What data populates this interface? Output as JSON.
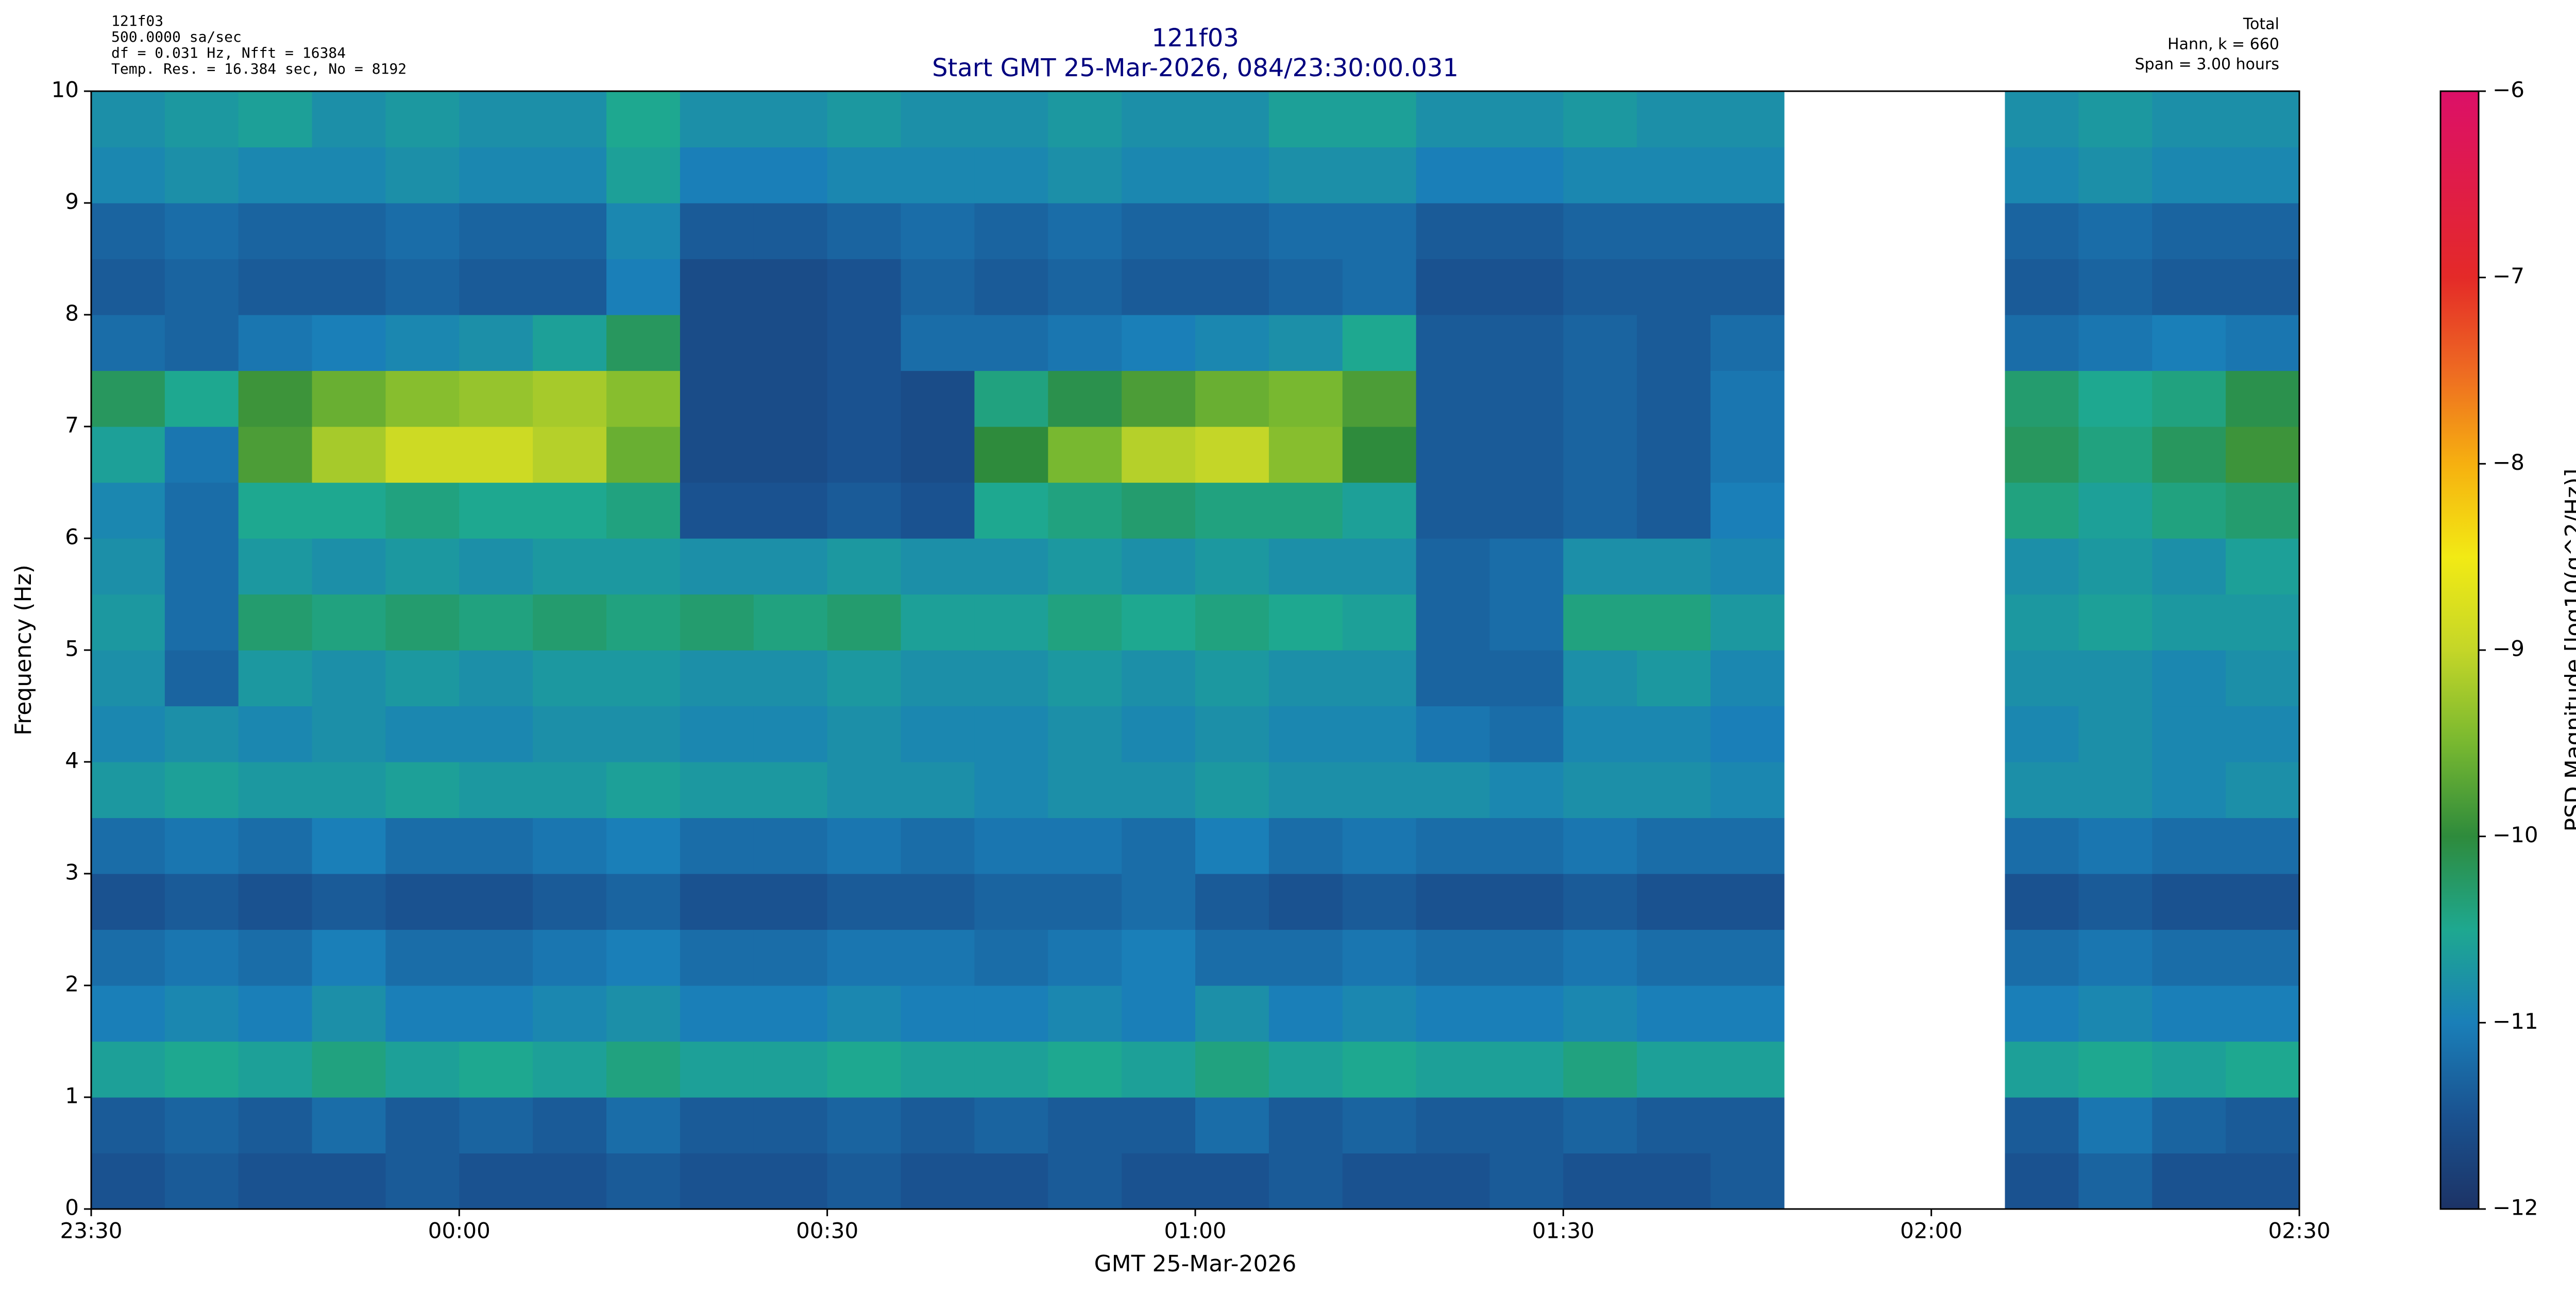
{
  "chart_data": {
    "type": "heatmap",
    "title": "121f03",
    "subtitle": "Start GMT 25-Mar-2026, 084/23:30:00.031",
    "info_left": [
      "121f03",
      "500.0000 sa/sec",
      "df = 0.031 Hz,  Nfft = 16384",
      "Temp. Res. = 16.384 sec, No = 8192"
    ],
    "info_right": [
      "Total",
      "Hann, k = 660",
      "Span = 3.00 hours"
    ],
    "xlabel": "GMT 25-Mar-2026",
    "ylabel": "Frequency (Hz)",
    "colorbar_label": "PSD Magnitude [log10(g^2/Hz)]",
    "xlim": [
      0,
      180
    ],
    "xticks": [
      {
        "value": 0,
        "label": "23:30"
      },
      {
        "value": 30,
        "label": "00:00"
      },
      {
        "value": 60,
        "label": "00:30"
      },
      {
        "value": 90,
        "label": "01:00"
      },
      {
        "value": 120,
        "label": "01:30"
      },
      {
        "value": 150,
        "label": "02:00"
      },
      {
        "value": 180,
        "label": "02:30"
      }
    ],
    "ylim": [
      0,
      10
    ],
    "yticks": [
      0,
      1,
      2,
      3,
      4,
      5,
      6,
      7,
      8,
      9,
      10
    ],
    "clim": [
      -12,
      -6
    ],
    "cticks": [
      {
        "value": -12,
        "label": "−12"
      },
      {
        "value": -11,
        "label": "−11"
      },
      {
        "value": -10,
        "label": "−10"
      },
      {
        "value": -9,
        "label": "−9"
      },
      {
        "value": -8,
        "label": "−8"
      },
      {
        "value": -7,
        "label": "−7"
      },
      {
        "value": -6,
        "label": "−6"
      }
    ],
    "colormap": [
      "#1c3366",
      "#1a5290",
      "#1a7fb8",
      "#1ea890",
      "#2e8b3c",
      "#78b830",
      "#c4d628",
      "#f2ea14",
      "#f6b010",
      "#ee6a22",
      "#e42a28",
      "#e01c48",
      "#dc1068"
    ],
    "xbins": [
      0,
      6,
      12,
      18,
      24,
      30,
      36,
      42,
      48,
      54,
      60,
      66,
      72,
      78,
      84,
      90,
      96,
      102,
      108,
      114,
      120,
      126,
      132,
      138,
      144,
      150,
      156,
      162,
      168,
      174,
      180
    ],
    "ybins": [
      0,
      0.5,
      1,
      1.5,
      2,
      2.5,
      3,
      3.5,
      4,
      4.5,
      5,
      5.5,
      6,
      6.5,
      7,
      7.5,
      8,
      8.5,
      9,
      9.5,
      10
    ],
    "z": [
      [
        -11.5,
        -11.4,
        -11.5,
        -11.5,
        -11.4,
        -11.5,
        -11.5,
        -11.4,
        -11.5,
        -11.5,
        -11.4,
        -11.5,
        -11.5,
        -11.4,
        -11.5,
        -11.5,
        -11.4,
        -11.5,
        -11.5,
        -11.4,
        -11.5,
        -11.5,
        -11.4,
        null,
        null,
        null,
        -11.5,
        -11.3,
        -11.5,
        -11.5
      ],
      [
        -11.4,
        -11.3,
        -11.4,
        -11.2,
        -11.4,
        -11.3,
        -11.4,
        -11.2,
        -11.4,
        -11.4,
        -11.3,
        -11.4,
        -11.3,
        -11.4,
        -11.4,
        -11.2,
        -11.4,
        -11.3,
        -11.4,
        -11.4,
        -11.3,
        -11.4,
        -11.4,
        null,
        null,
        null,
        -11.4,
        -11.1,
        -11.3,
        -11.4
      ],
      [
        -10.6,
        -10.5,
        -10.6,
        -10.4,
        -10.6,
        -10.5,
        -10.6,
        -10.4,
        -10.6,
        -10.6,
        -10.5,
        -10.6,
        -10.6,
        -10.5,
        -10.6,
        -10.4,
        -10.6,
        -10.5,
        -10.6,
        -10.6,
        -10.4,
        -10.6,
        -10.6,
        null,
        null,
        null,
        -10.6,
        -10.5,
        -10.6,
        -10.5
      ],
      [
        -11.0,
        -10.9,
        -11.0,
        -10.8,
        -11.0,
        -11.0,
        -10.9,
        -10.8,
        -11.0,
        -11.0,
        -10.9,
        -11.0,
        -11.0,
        -10.9,
        -11.0,
        -10.8,
        -11.0,
        -10.9,
        -11.0,
        -11.0,
        -10.9,
        -11.0,
        -11.0,
        null,
        null,
        null,
        -11.0,
        -10.9,
        -11.0,
        -11.0
      ],
      [
        -11.2,
        -11.1,
        -11.2,
        -11.0,
        -11.2,
        -11.2,
        -11.1,
        -11.0,
        -11.2,
        -11.2,
        -11.1,
        -11.1,
        -11.2,
        -11.1,
        -11.0,
        -11.2,
        -11.2,
        -11.1,
        -11.2,
        -11.2,
        -11.1,
        -11.2,
        -11.2,
        null,
        null,
        null,
        -11.2,
        -11.1,
        -11.2,
        -11.2
      ],
      [
        -11.5,
        -11.4,
        -11.5,
        -11.4,
        -11.5,
        -11.5,
        -11.4,
        -11.3,
        -11.5,
        -11.5,
        -11.4,
        -11.4,
        -11.3,
        -11.3,
        -11.2,
        -11.4,
        -11.5,
        -11.4,
        -11.5,
        -11.5,
        -11.4,
        -11.5,
        -11.5,
        null,
        null,
        null,
        -11.5,
        -11.4,
        -11.5,
        -11.5
      ],
      [
        -11.2,
        -11.1,
        -11.2,
        -11.0,
        -11.2,
        -11.2,
        -11.1,
        -11.0,
        -11.2,
        -11.2,
        -11.1,
        -11.2,
        -11.1,
        -11.1,
        -11.2,
        -11.0,
        -11.2,
        -11.1,
        -11.2,
        -11.2,
        -11.1,
        -11.2,
        -11.2,
        null,
        null,
        null,
        -11.2,
        -11.1,
        -11.2,
        -11.2
      ],
      [
        -10.7,
        -10.6,
        -10.7,
        -10.7,
        -10.6,
        -10.7,
        -10.7,
        -10.6,
        -10.7,
        -10.7,
        -10.8,
        -10.8,
        -10.9,
        -10.8,
        -10.8,
        -10.7,
        -10.8,
        -10.8,
        -10.8,
        -10.9,
        -10.8,
        -10.8,
        -10.9,
        null,
        null,
        null,
        -10.8,
        -10.8,
        -10.9,
        -10.8
      ],
      [
        -10.9,
        -10.8,
        -10.9,
        -10.8,
        -10.9,
        -10.9,
        -10.8,
        -10.8,
        -10.9,
        -10.9,
        -10.8,
        -10.9,
        -10.9,
        -10.8,
        -10.9,
        -10.8,
        -10.9,
        -10.9,
        -11.1,
        -11.2,
        -10.9,
        -10.9,
        -11.0,
        null,
        null,
        null,
        -10.9,
        -10.8,
        -10.9,
        -10.9
      ],
      [
        -10.8,
        -11.3,
        -10.7,
        -10.8,
        -10.7,
        -10.8,
        -10.7,
        -10.7,
        -10.8,
        -10.8,
        -10.7,
        -10.8,
        -10.8,
        -10.7,
        -10.8,
        -10.7,
        -10.8,
        -10.8,
        -11.3,
        -11.3,
        -10.8,
        -10.7,
        -10.9,
        null,
        null,
        null,
        -10.8,
        -10.8,
        -10.9,
        -10.8
      ],
      [
        -10.7,
        -11.2,
        -10.3,
        -10.4,
        -10.3,
        -10.4,
        -10.3,
        -10.4,
        -10.3,
        -10.4,
        -10.3,
        -10.6,
        -10.6,
        -10.4,
        -10.5,
        -10.4,
        -10.5,
        -10.6,
        -11.3,
        -11.2,
        -10.4,
        -10.4,
        -10.7,
        null,
        null,
        null,
        -10.7,
        -10.6,
        -10.7,
        -10.7
      ],
      [
        -10.8,
        -11.2,
        -10.7,
        -10.8,
        -10.7,
        -10.8,
        -10.7,
        -10.7,
        -10.8,
        -10.8,
        -10.7,
        -10.8,
        -10.8,
        -10.7,
        -10.8,
        -10.7,
        -10.8,
        -10.8,
        -11.3,
        -11.2,
        -10.8,
        -10.8,
        -10.9,
        null,
        null,
        null,
        -10.8,
        -10.7,
        -10.8,
        -10.6
      ],
      [
        -10.9,
        -11.2,
        -10.5,
        -10.5,
        -10.4,
        -10.5,
        -10.5,
        -10.4,
        -11.5,
        -11.5,
        -11.4,
        -11.5,
        -10.5,
        -10.4,
        -10.3,
        -10.4,
        -10.4,
        -10.6,
        -11.4,
        -11.4,
        -11.3,
        -11.4,
        -11.0,
        null,
        null,
        null,
        -10.4,
        -10.6,
        -10.4,
        -10.3
      ],
      [
        -10.6,
        -11.1,
        -9.8,
        -9.2,
        -8.9,
        -8.9,
        -9.1,
        -9.6,
        -11.6,
        -11.6,
        -11.5,
        -11.6,
        -10.0,
        -9.5,
        -9.1,
        -9.0,
        -9.4,
        -10.0,
        -11.4,
        -11.4,
        -11.3,
        -11.4,
        -11.1,
        null,
        null,
        null,
        -10.2,
        -10.4,
        -10.2,
        -9.9
      ],
      [
        -10.2,
        -10.5,
        -9.9,
        -9.6,
        -9.4,
        -9.3,
        -9.2,
        -9.4,
        -11.6,
        -11.6,
        -11.5,
        -11.6,
        -10.4,
        -10.1,
        -9.8,
        -9.6,
        -9.5,
        -9.8,
        -11.4,
        -11.4,
        -11.3,
        -11.4,
        -11.1,
        null,
        null,
        null,
        -10.3,
        -10.5,
        -10.4,
        -10.1
      ],
      [
        -11.2,
        -11.3,
        -11.1,
        -11.0,
        -10.9,
        -10.8,
        -10.6,
        -10.2,
        -11.6,
        -11.6,
        -11.5,
        -11.2,
        -11.2,
        -11.1,
        -11.0,
        -10.9,
        -10.8,
        -10.5,
        -11.4,
        -11.4,
        -11.3,
        -11.4,
        -11.2,
        null,
        null,
        null,
        -11.2,
        -11.1,
        -11.0,
        -11.1
      ],
      [
        -11.4,
        -11.3,
        -11.4,
        -11.4,
        -11.3,
        -11.4,
        -11.4,
        -11.0,
        -11.6,
        -11.6,
        -11.5,
        -11.3,
        -11.4,
        -11.3,
        -11.4,
        -11.4,
        -11.3,
        -11.2,
        -11.5,
        -11.5,
        -11.4,
        -11.4,
        -11.4,
        null,
        null,
        null,
        -11.4,
        -11.3,
        -11.4,
        -11.4
      ],
      [
        -11.3,
        -11.2,
        -11.3,
        -11.3,
        -11.2,
        -11.3,
        -11.3,
        -10.9,
        -11.4,
        -11.4,
        -11.3,
        -11.2,
        -11.3,
        -11.2,
        -11.3,
        -11.3,
        -11.2,
        -11.2,
        -11.4,
        -11.4,
        -11.3,
        -11.3,
        -11.3,
        null,
        null,
        null,
        -11.3,
        -11.2,
        -11.3,
        -11.3
      ],
      [
        -10.9,
        -10.8,
        -10.9,
        -10.9,
        -10.8,
        -10.9,
        -10.9,
        -10.6,
        -11.0,
        -11.0,
        -10.9,
        -10.9,
        -10.9,
        -10.8,
        -10.9,
        -10.9,
        -10.8,
        -10.8,
        -11.0,
        -11.0,
        -10.9,
        -10.9,
        -10.9,
        null,
        null,
        null,
        -10.9,
        -10.8,
        -10.9,
        -10.9
      ],
      [
        -10.8,
        -10.7,
        -10.6,
        -10.8,
        -10.7,
        -10.8,
        -10.8,
        -10.5,
        -10.8,
        -10.8,
        -10.7,
        -10.8,
        -10.8,
        -10.7,
        -10.8,
        -10.8,
        -10.6,
        -10.6,
        -10.8,
        -10.8,
        -10.7,
        -10.8,
        -10.8,
        null,
        null,
        null,
        -10.8,
        -10.7,
        -10.8,
        -10.8
      ]
    ]
  }
}
